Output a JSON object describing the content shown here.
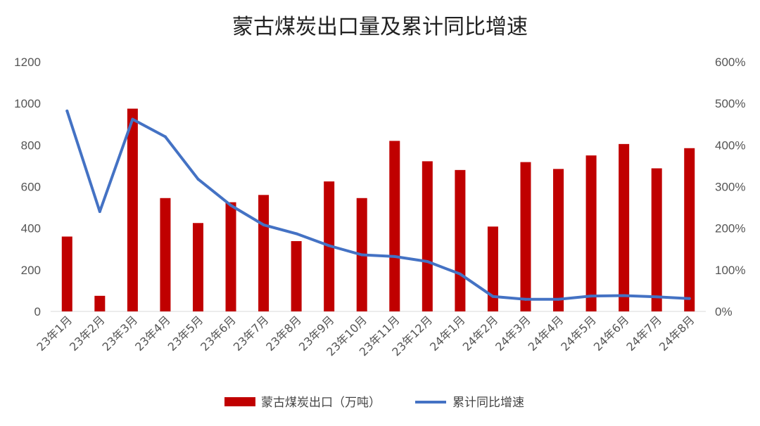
{
  "chart_data": {
    "type": "bar",
    "title": "蒙古煤炭出口量及累计同比增速",
    "categories": [
      "23年1月",
      "23年2月",
      "23年3月",
      "23年4月",
      "23年5月",
      "23年6月",
      "23年7月",
      "23年8月",
      "23年9月",
      "23年10月",
      "23年11月",
      "23年12月",
      "24年1月",
      "24年2月",
      "24年3月",
      "24年4月",
      "24年5月",
      "24年6月",
      "24年7月",
      "24年8月"
    ],
    "series": [
      {
        "name": "蒙古煤炭出口（万吨）",
        "type": "bar",
        "axis": "left",
        "color": "#C00000",
        "values": [
          360,
          75,
          975,
          545,
          425,
          525,
          560,
          338,
          625,
          545,
          820,
          722,
          680,
          408,
          718,
          685,
          750,
          805,
          688,
          785
        ]
      },
      {
        "name": "累计同比增速",
        "type": "line",
        "axis": "right",
        "color": "#4472C4",
        "values": [
          4.82,
          2.4,
          4.62,
          4.2,
          3.18,
          2.55,
          2.08,
          1.87,
          1.58,
          1.36,
          1.32,
          1.2,
          0.9,
          0.36,
          0.29,
          0.29,
          0.37,
          0.38,
          0.35,
          0.31
        ]
      }
    ],
    "y_left": {
      "min": 0,
      "max": 1200,
      "ticks": [
        "0",
        "200",
        "400",
        "600",
        "800",
        "1000",
        "1200"
      ]
    },
    "y_right": {
      "min": 0,
      "max": 6,
      "ticks": [
        "0%",
        "100%",
        "200%",
        "300%",
        "400%",
        "500%",
        "600%"
      ]
    },
    "grid": false,
    "legend_position": "bottom"
  }
}
